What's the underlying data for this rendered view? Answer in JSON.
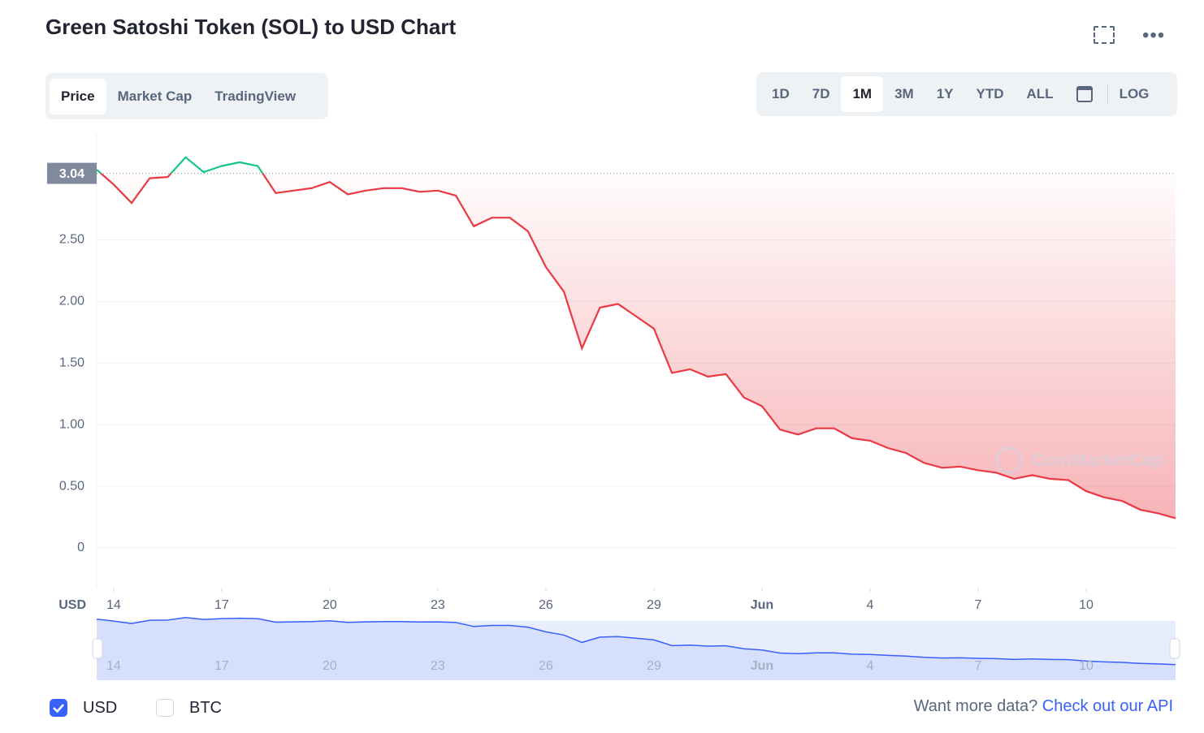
{
  "header": {
    "title": "Green Satoshi Token (SOL) to USD Chart"
  },
  "tabs": [
    "Price",
    "Market Cap",
    "TradingView"
  ],
  "ranges": [
    "1D",
    "7D",
    "1M",
    "3M",
    "1Y",
    "YTD",
    "ALL"
  ],
  "log_button": "LOG",
  "currency_options": [
    "USD",
    "BTC"
  ],
  "footer": {
    "prompt": "Want more data?",
    "link": "Check out our API"
  },
  "watermark": "CoinMarketCap",
  "chart_data": {
    "type": "line",
    "y_axis_label": "USD",
    "reference_value": 3.04,
    "x": [
      13.53,
      14,
      14.5,
      15,
      15.5,
      16,
      16.5,
      17,
      17.5,
      18,
      18.5,
      19,
      19.5,
      20,
      20.5,
      21,
      21.5,
      22,
      22.5,
      23,
      23.5,
      24,
      24.5,
      25,
      25.5,
      26,
      26.5,
      27,
      27.5,
      28,
      28.5,
      29,
      29.5,
      30,
      30.5,
      31,
      31.5,
      32,
      32.5,
      33,
      33.5,
      34,
      34.5,
      35,
      35.5,
      36,
      36.5,
      37,
      37.5,
      38,
      38.5,
      39,
      39.5,
      40,
      40.5,
      41,
      41.5,
      42,
      42.5,
      43,
      43.48
    ],
    "series": [
      {
        "name": "USD",
        "color": "#ea3943",
        "color_above": "#16c784",
        "values": [
          3.07,
          2.95,
          2.8,
          3.0,
          3.01,
          3.17,
          3.05,
          3.1,
          3.13,
          3.1,
          2.88,
          2.9,
          2.92,
          2.97,
          2.87,
          2.9,
          2.92,
          2.92,
          2.89,
          2.9,
          2.86,
          2.61,
          2.68,
          2.68,
          2.57,
          2.28,
          2.08,
          1.62,
          1.95,
          1.98,
          1.88,
          1.78,
          1.42,
          1.45,
          1.39,
          1.41,
          1.22,
          1.15,
          0.96,
          0.92,
          0.97,
          0.97,
          0.89,
          0.87,
          0.81,
          0.77,
          0.69,
          0.65,
          0.66,
          0.63,
          0.61,
          0.56,
          0.59,
          0.56,
          0.55,
          0.46,
          0.41,
          0.38,
          0.31,
          0.28,
          0.24
        ]
      }
    ],
    "xlim": [
      13.53,
      43.48
    ],
    "xticks": [
      14,
      17,
      20,
      23,
      26,
      29,
      {
        "value": 32,
        "label": "Jun"
      },
      {
        "value": 35,
        "label": "4"
      },
      {
        "value": 38,
        "label": "7"
      },
      {
        "value": 41,
        "label": "10"
      }
    ],
    "ylim": [
      -0.33,
      3.36
    ],
    "yticks": [
      0,
      {
        "value": 0.5,
        "label": "0.50"
      },
      {
        "value": 1,
        "label": "1.00"
      },
      {
        "value": 1.5,
        "label": "1.50"
      },
      {
        "value": 2,
        "label": "2.00"
      },
      {
        "value": 2.5,
        "label": "2.50"
      }
    ],
    "grid": true
  }
}
